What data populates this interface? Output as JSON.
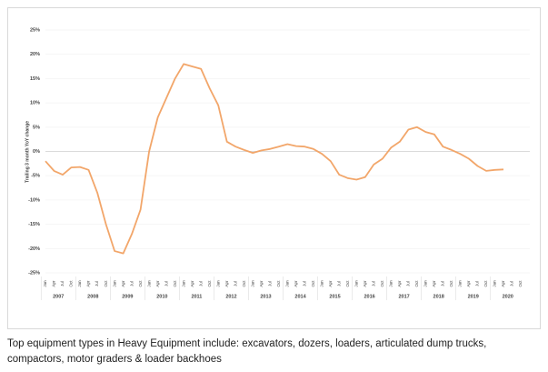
{
  "chart_data": {
    "type": "line",
    "y_label": "Trailing 3 month YoY change",
    "categories": [
      "Jan",
      "Apr",
      "Jul",
      "Oct",
      "Jan",
      "Apr",
      "Jul",
      "Oct",
      "Jan",
      "Apr",
      "Jul",
      "Oct",
      "Jan",
      "Apr",
      "Jul",
      "Oct",
      "Jan",
      "Apr",
      "Jul",
      "Oct",
      "Jan",
      "Apr",
      "Jul",
      "Oct",
      "Jan",
      "Apr",
      "Jul",
      "Oct",
      "Jan",
      "Apr",
      "Jul",
      "Oct",
      "Jan",
      "Apr",
      "Jul",
      "Oct",
      "Jan",
      "Apr",
      "Jul",
      "Oct",
      "Jan",
      "Apr",
      "Jul",
      "Oct",
      "Jan",
      "Apr",
      "Jul",
      "Oct",
      "Jan",
      "Apr",
      "Jul",
      "Oct",
      "Jan",
      "Apr",
      "Jul",
      "Oct"
    ],
    "years": [
      "2007",
      "2008",
      "2009",
      "2010",
      "2011",
      "2012",
      "2013",
      "2014",
      "2015",
      "2016",
      "2017",
      "2018",
      "2019",
      "2020"
    ],
    "series": [
      {
        "name": "Heavy Equipment",
        "color": "#f2a66a",
        "values": [
          -2,
          -4,
          -4.8,
          -3.3,
          -3.2,
          -3.8,
          -8.5,
          -15,
          -20.5,
          -21,
          -17,
          -12,
          0,
          7,
          11,
          15,
          18,
          17.5,
          17,
          13,
          9.5,
          2,
          1,
          0.3,
          -0.3,
          0.2,
          0.5,
          1,
          1.5,
          1.1,
          1,
          0.5,
          -0.5,
          -2,
          -4.8,
          -5.5,
          -5.8,
          -5.3,
          -2.7,
          -1.5,
          0.8,
          2,
          4.5,
          5,
          4,
          3.5,
          1,
          0.3,
          -0.5,
          -1.5,
          -3,
          -4,
          -3.8,
          -3.7,
          null,
          null
        ]
      }
    ],
    "ylim": [
      -25,
      25
    ],
    "yticks": [
      {
        "value": -25,
        "label": "-25%"
      },
      {
        "value": -20,
        "label": "-20%"
      },
      {
        "value": -15,
        "label": "-15%"
      },
      {
        "value": -10,
        "label": "-10%"
      },
      {
        "value": -5,
        "label": "-5%"
      },
      {
        "value": 0,
        "label": "0%"
      },
      {
        "value": 5,
        "label": "5%"
      },
      {
        "value": 10,
        "label": "10%"
      },
      {
        "value": 15,
        "label": "15%"
      },
      {
        "value": 20,
        "label": "20%"
      },
      {
        "value": 25,
        "label": "25%"
      }
    ],
    "grid": true
  },
  "caption": "Top equipment types in Heavy Equipment include: excavators, dozers, loaders, articulated dump trucks, compactors, motor graders & loader backhoes"
}
